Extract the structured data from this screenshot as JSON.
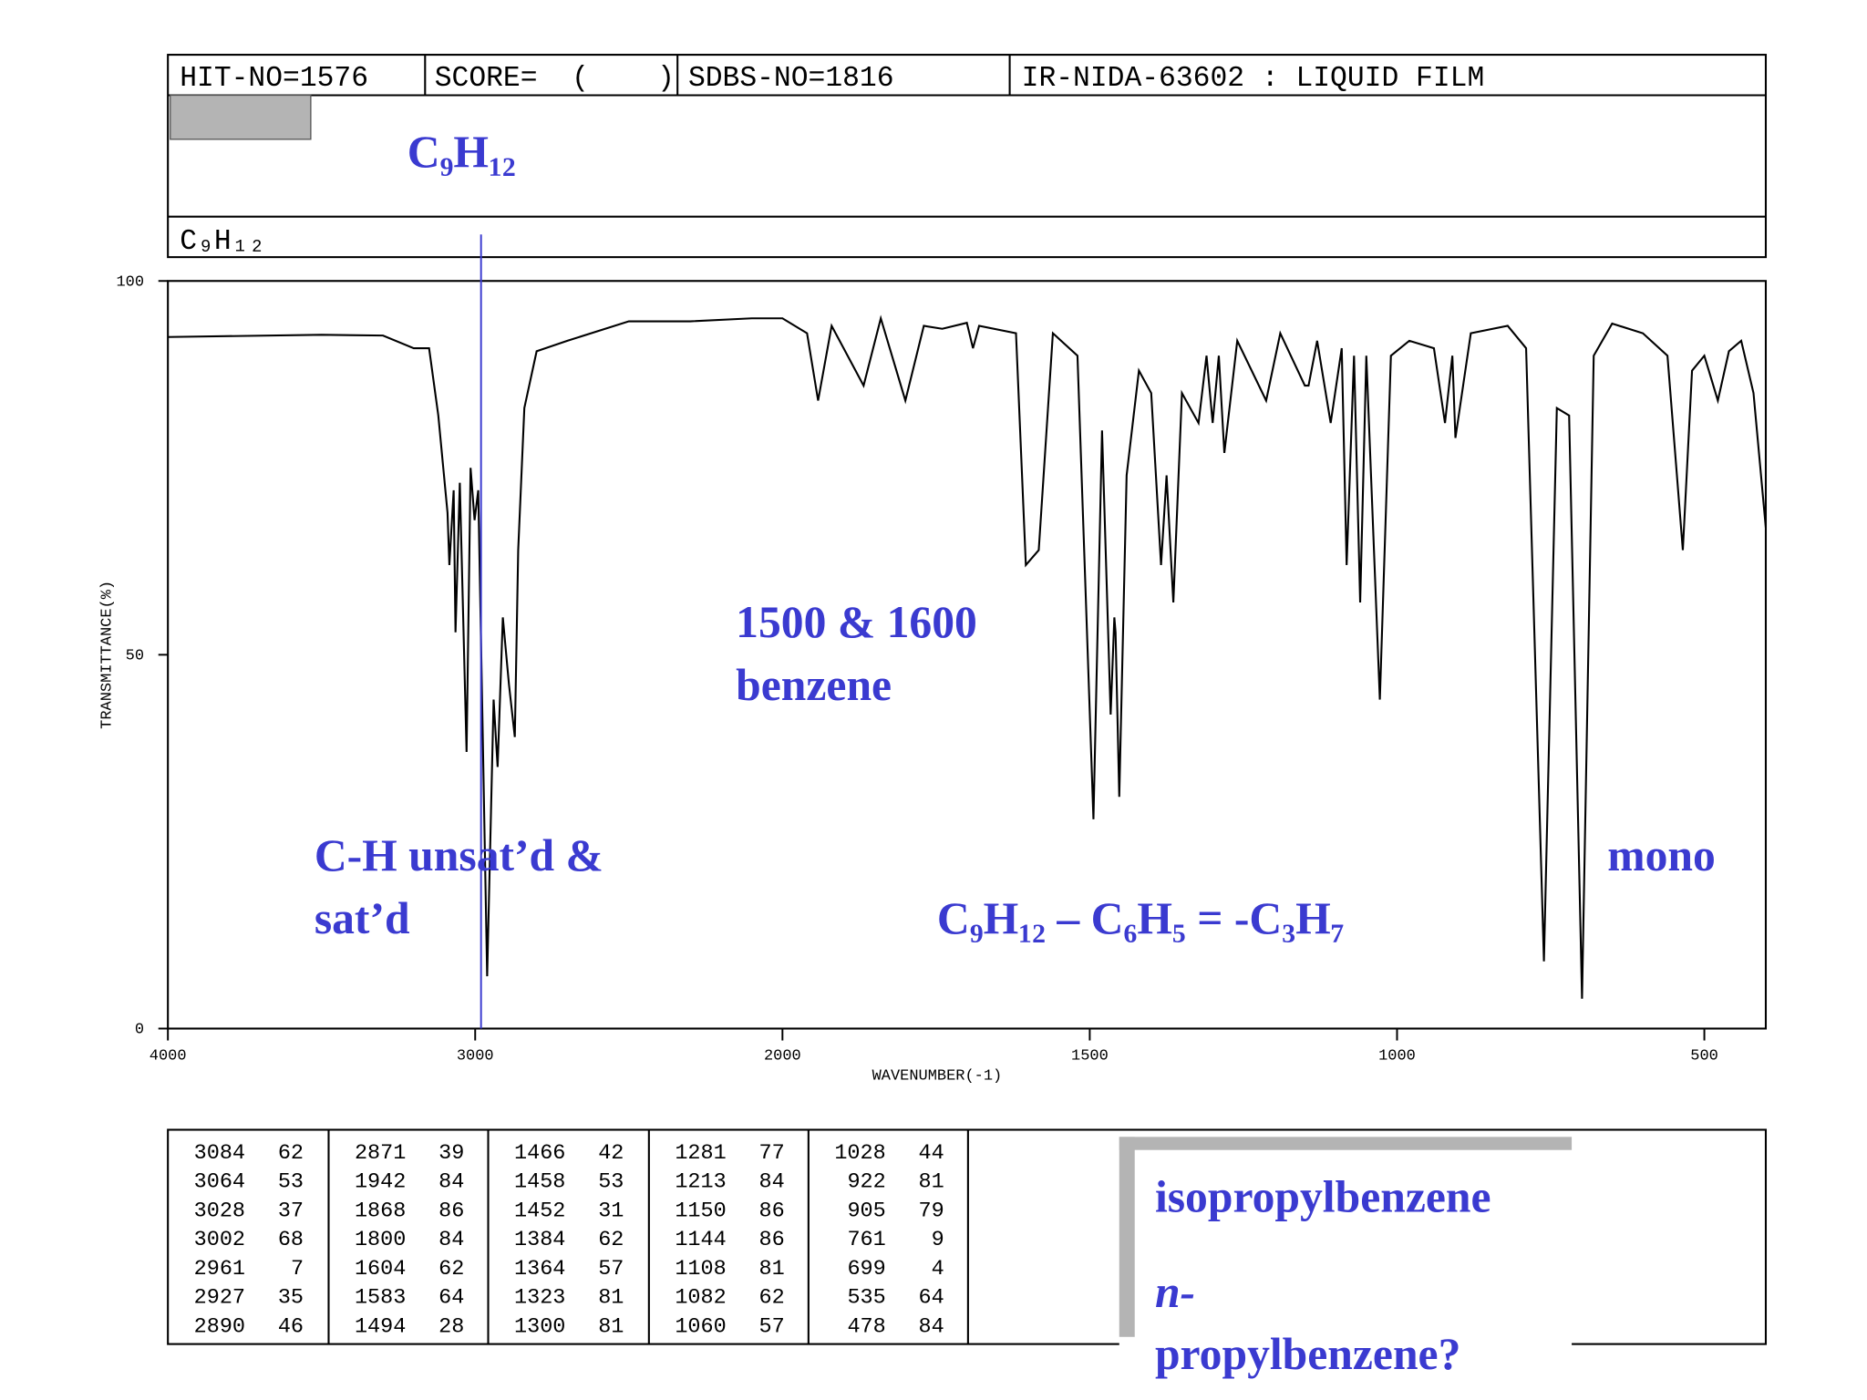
{
  "header": {
    "fields": [
      "HIT-NO=1576",
      "SCORE=  (    )",
      "SDBS-NO=1816",
      "IR-NIDA-63602 : LIQUID FILM"
    ],
    "formula_large": "C₉H₁₂",
    "formula_small": "C₉H₁₂"
  },
  "chart_data": {
    "type": "line",
    "x_label": "WAVENUMBER(-1)",
    "y_label": "TRANSMITTANCE(%)",
    "xlim": [
      4000,
      400
    ],
    "xbreak": 2000,
    "xticks": [
      4000,
      3000,
      2000,
      1500,
      1000,
      500
    ],
    "ylim": [
      0,
      100
    ],
    "yticks": [
      0,
      50,
      100
    ],
    "color": "#000000",
    "x": [
      4000,
      3500,
      3300,
      3200,
      3150,
      3120,
      3090,
      3084,
      3070,
      3064,
      3050,
      3028,
      3015,
      3002,
      2990,
      2961,
      2940,
      2927,
      2910,
      2890,
      2871,
      2860,
      2840,
      2800,
      2700,
      2500,
      2300,
      2100,
      2000,
      1960,
      1942,
      1920,
      1868,
      1840,
      1800,
      1770,
      1740,
      1700,
      1690,
      1680,
      1620,
      1604,
      1583,
      1560,
      1520,
      1494,
      1480,
      1466,
      1460,
      1458,
      1452,
      1440,
      1420,
      1400,
      1384,
      1375,
      1364,
      1350,
      1323,
      1310,
      1300,
      1290,
      1281,
      1260,
      1213,
      1190,
      1150,
      1144,
      1130,
      1108,
      1090,
      1082,
      1070,
      1060,
      1050,
      1028,
      1010,
      980,
      940,
      922,
      910,
      905,
      880,
      820,
      790,
      761,
      740,
      720,
      699,
      680,
      650,
      600,
      560,
      535,
      520,
      500,
      478,
      460,
      440,
      420,
      400
    ],
    "values": [
      92.5,
      92.8,
      92.7,
      91,
      91,
      82,
      69,
      62,
      72,
      53,
      73,
      37,
      75,
      68,
      72,
      7,
      44,
      35,
      55,
      46,
      39,
      64,
      83,
      90.6,
      92,
      94.6,
      94.6,
      95,
      95,
      93,
      84,
      94,
      86,
      95,
      84,
      94,
      93.6,
      94.4,
      91,
      94,
      93,
      62,
      64,
      93,
      90,
      28,
      80,
      42,
      55,
      53,
      31,
      74,
      88,
      85,
      62,
      74,
      57,
      85,
      81,
      90,
      81,
      90,
      77,
      92,
      84,
      93,
      86,
      86,
      92,
      81,
      91,
      62,
      90,
      57,
      90,
      44,
      90,
      92,
      91,
      81,
      90,
      79,
      93,
      94,
      91,
      9,
      83,
      82,
      4,
      90,
      94.3,
      93,
      90,
      64,
      88,
      90,
      84,
      90.6,
      92,
      85,
      67
    ]
  },
  "peak_table": [
    [
      [
        3084,
        62
      ],
      [
        3064,
        53
      ],
      [
        3028,
        37
      ],
      [
        3002,
        68
      ],
      [
        2961,
        7
      ],
      [
        2927,
        35
      ],
      [
        2890,
        46
      ]
    ],
    [
      [
        2871,
        39
      ],
      [
        1942,
        84
      ],
      [
        1868,
        86
      ],
      [
        1800,
        84
      ],
      [
        1604,
        62
      ],
      [
        1583,
        64
      ],
      [
        1494,
        28
      ]
    ],
    [
      [
        1466,
        42
      ],
      [
        1458,
        53
      ],
      [
        1452,
        31
      ],
      [
        1384,
        62
      ],
      [
        1364,
        57
      ],
      [
        1323,
        81
      ],
      [
        1300,
        81
      ]
    ],
    [
      [
        1281,
        77
      ],
      [
        1213,
        84
      ],
      [
        1150,
        86
      ],
      [
        1144,
        86
      ],
      [
        1108,
        81
      ],
      [
        1082,
        62
      ],
      [
        1060,
        57
      ]
    ],
    [
      [
        1028,
        44
      ],
      [
        922,
        81
      ],
      [
        905,
        79
      ],
      [
        761,
        9
      ],
      [
        699,
        4
      ],
      [
        535,
        64
      ],
      [
        478,
        84
      ]
    ]
  ],
  "annotations": {
    "benzene": [
      "1500 & 1600",
      "benzene"
    ],
    "ch": [
      "C-H unsat’d &",
      "sat’d"
    ],
    "mono": "mono",
    "subtraction": "C₉H₁₂ – C₆H₅ = -C₃H₇",
    "candidates": [
      "isopropylbenzene",
      "n-",
      "propylbenzene?"
    ]
  }
}
